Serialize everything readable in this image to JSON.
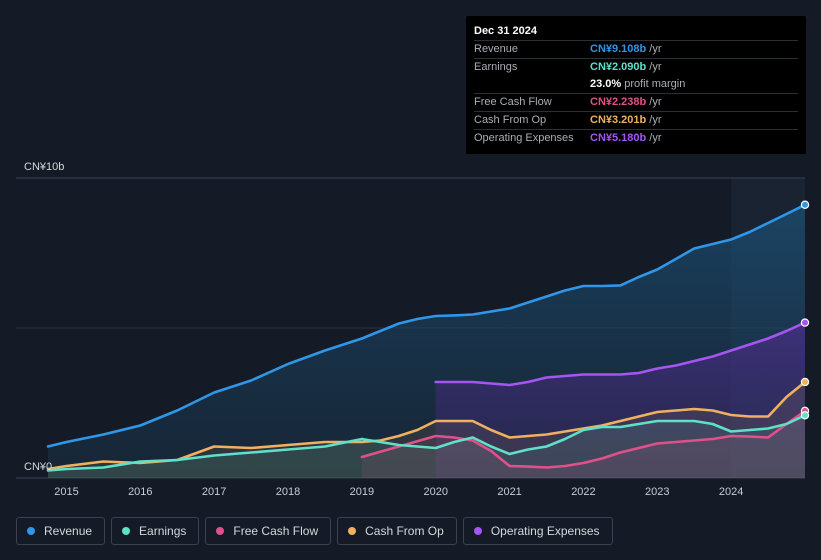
{
  "tooltip": {
    "date": "Dec 31 2024",
    "rows": [
      {
        "label": "Revenue",
        "value": "CN¥9.108b",
        "unit": "/yr",
        "color": "#2f96e8"
      },
      {
        "label": "Earnings",
        "value": "CN¥2.090b",
        "unit": "/yr",
        "color": "#5fe0c8"
      },
      {
        "label": "",
        "value": "23.0%",
        "unit": "profit margin",
        "color": "#ffffff"
      },
      {
        "label": "Free Cash Flow",
        "value": "CN¥2.238b",
        "unit": "/yr",
        "color": "#e0508a"
      },
      {
        "label": "Cash From Op",
        "value": "CN¥3.201b",
        "unit": "/yr",
        "color": "#f0b060"
      },
      {
        "label": "Operating Expenses",
        "value": "CN¥5.180b",
        "unit": "/yr",
        "color": "#a555f0"
      }
    ]
  },
  "legend": [
    {
      "label": "Revenue",
      "color": "#2f96e8"
    },
    {
      "label": "Earnings",
      "color": "#5fe0c8"
    },
    {
      "label": "Free Cash Flow",
      "color": "#e0508a"
    },
    {
      "label": "Cash From Op",
      "color": "#f0b060"
    },
    {
      "label": "Operating Expenses",
      "color": "#a555f0"
    }
  ],
  "chart_data": {
    "type": "area",
    "title": "",
    "xlabel": "",
    "ylabel": "",
    "ylim": [
      0,
      10
    ],
    "y_ticks": [
      "CN¥0",
      "CN¥10b"
    ],
    "x_ticks": [
      2015,
      2016,
      2017,
      2018,
      2019,
      2020,
      2021,
      2022,
      2023,
      2024
    ],
    "xlim": [
      2014.75,
      2025.0
    ],
    "forecast_shade_start": 2024.0,
    "series": [
      {
        "name": "Revenue",
        "color": "#2f96e8",
        "x": [
          2014.75,
          2015.0,
          2015.5,
          2016.0,
          2016.5,
          2017.0,
          2017.5,
          2018.0,
          2018.5,
          2019.0,
          2019.25,
          2019.5,
          2019.75,
          2020.0,
          2020.25,
          2020.5,
          2020.75,
          2021.0,
          2021.25,
          2021.5,
          2021.75,
          2022.0,
          2022.25,
          2022.5,
          2022.75,
          2023.0,
          2023.25,
          2023.5,
          2023.75,
          2024.0,
          2024.25,
          2024.5,
          2024.75,
          2025.0
        ],
        "values": [
          1.05,
          1.2,
          1.45,
          1.75,
          2.25,
          2.85,
          3.25,
          3.8,
          4.25,
          4.65,
          4.9,
          5.15,
          5.3,
          5.4,
          5.42,
          5.45,
          5.55,
          5.65,
          5.85,
          6.05,
          6.25,
          6.4,
          6.4,
          6.42,
          6.7,
          6.95,
          7.3,
          7.65,
          7.8,
          7.95,
          8.2,
          8.5,
          8.8,
          9.108
        ]
      },
      {
        "name": "Earnings",
        "color": "#5fe0c8",
        "x": [
          2014.75,
          2015.0,
          2015.5,
          2016.0,
          2016.5,
          2017.0,
          2017.5,
          2018.0,
          2018.5,
          2019.0,
          2019.25,
          2019.5,
          2019.75,
          2020.0,
          2020.25,
          2020.5,
          2020.75,
          2021.0,
          2021.25,
          2021.5,
          2021.75,
          2022.0,
          2022.25,
          2022.5,
          2022.75,
          2023.0,
          2023.25,
          2023.5,
          2023.75,
          2024.0,
          2024.25,
          2024.5,
          2024.75,
          2025.0
        ],
        "values": [
          0.25,
          0.3,
          0.35,
          0.55,
          0.6,
          0.75,
          0.85,
          0.95,
          1.05,
          1.3,
          1.2,
          1.1,
          1.05,
          1.0,
          1.2,
          1.35,
          1.05,
          0.8,
          0.95,
          1.05,
          1.3,
          1.6,
          1.7,
          1.7,
          1.8,
          1.9,
          1.9,
          1.9,
          1.8,
          1.55,
          1.6,
          1.65,
          1.8,
          2.09
        ]
      },
      {
        "name": "Free Cash Flow",
        "color": "#e0508a",
        "x": [
          2019.0,
          2019.5,
          2020.0,
          2020.25,
          2020.5,
          2020.75,
          2021.0,
          2021.25,
          2021.5,
          2021.75,
          2022.0,
          2022.25,
          2022.5,
          2022.75,
          2023.0,
          2023.25,
          2023.5,
          2023.75,
          2024.0,
          2024.25,
          2024.5,
          2024.75,
          2025.0
        ],
        "values": [
          0.7,
          1.05,
          1.4,
          1.35,
          1.25,
          0.9,
          0.4,
          0.38,
          0.35,
          0.4,
          0.5,
          0.65,
          0.85,
          1.0,
          1.15,
          1.2,
          1.25,
          1.3,
          1.4,
          1.38,
          1.35,
          1.8,
          2.238
        ]
      },
      {
        "name": "Cash From Op",
        "color": "#f0b060",
        "x": [
          2014.75,
          2015.0,
          2015.5,
          2016.0,
          2016.5,
          2017.0,
          2017.5,
          2018.0,
          2018.5,
          2019.0,
          2019.25,
          2019.5,
          2019.75,
          2020.0,
          2020.25,
          2020.5,
          2020.75,
          2021.0,
          2021.25,
          2021.5,
          2021.75,
          2022.0,
          2022.25,
          2022.5,
          2022.75,
          2023.0,
          2023.25,
          2023.5,
          2023.75,
          2024.0,
          2024.25,
          2024.5,
          2024.75,
          2025.0
        ],
        "values": [
          0.3,
          0.4,
          0.55,
          0.5,
          0.6,
          1.05,
          1.0,
          1.1,
          1.2,
          1.2,
          1.25,
          1.4,
          1.6,
          1.9,
          1.9,
          1.9,
          1.6,
          1.35,
          1.4,
          1.45,
          1.55,
          1.65,
          1.75,
          1.9,
          2.05,
          2.2,
          2.25,
          2.3,
          2.25,
          2.1,
          2.05,
          2.05,
          2.7,
          3.201
        ]
      },
      {
        "name": "Operating Expenses",
        "color": "#a555f0",
        "x": [
          2020.0,
          2020.25,
          2020.5,
          2020.75,
          2021.0,
          2021.25,
          2021.5,
          2021.75,
          2022.0,
          2022.25,
          2022.5,
          2022.75,
          2023.0,
          2023.25,
          2023.5,
          2023.75,
          2024.0,
          2024.25,
          2024.5,
          2024.75,
          2025.0
        ],
        "values": [
          3.2,
          3.2,
          3.2,
          3.15,
          3.1,
          3.2,
          3.35,
          3.4,
          3.45,
          3.45,
          3.45,
          3.5,
          3.65,
          3.75,
          3.9,
          4.05,
          4.25,
          4.45,
          4.65,
          4.9,
          5.18
        ]
      }
    ]
  }
}
